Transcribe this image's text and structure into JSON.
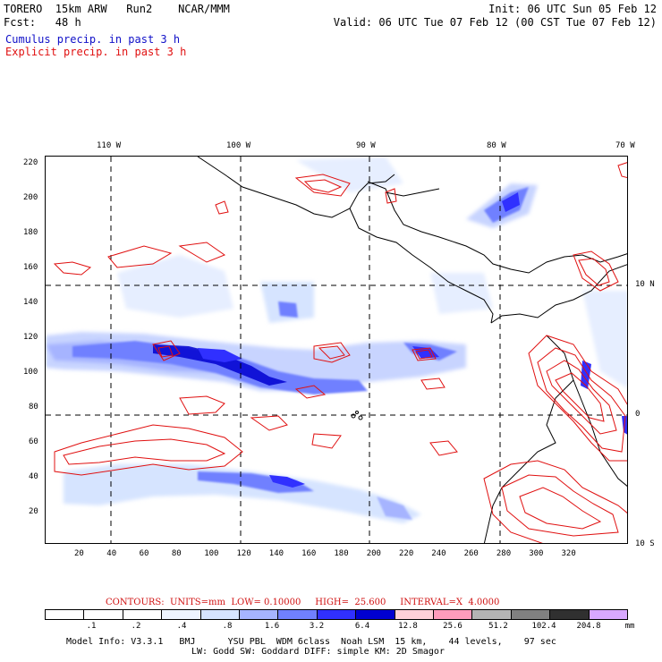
{
  "header": {
    "line1_left": "TORERO  15km ARW   Run2    NCAR/MMM",
    "line1_right": "Init: 06 UTC Sun 05 Feb 12",
    "line2_left": "Fcst:   48 h",
    "line2_right": "Valid: 06 UTC Tue 07 Feb 12 (00 CST Tue 07 Feb 12)",
    "line3": "Cumulus precip. in past 3 h",
    "line4": "Explicit precip. in past 3 h"
  },
  "axes": {
    "top_labels": [
      "110 W",
      "100 W",
      "90 W",
      "80 W",
      "70 W"
    ],
    "left_labels": [
      "220",
      "200",
      "180",
      "160",
      "140",
      "120",
      "100",
      "80",
      "60",
      "40",
      "20"
    ],
    "bottom_labels": [
      "20",
      "40",
      "60",
      "80",
      "100",
      "120",
      "140",
      "160",
      "180",
      "200",
      "220",
      "240",
      "260",
      "280",
      "300",
      "320"
    ],
    "right_labels": [
      "10 N",
      "0",
      "10 S"
    ]
  },
  "contour_info": "CONTOURS:  UNITS=mm  LOW= 0.10000     HIGH=  25.600     INTERVAL=X  4.0000",
  "legend": {
    "colors": [
      "#ffffff",
      "#ffffff",
      "#ffffff",
      "#eef4ff",
      "#d6e4ff",
      "#a6b4ff",
      "#7080ff",
      "#3030ff",
      "#0000d0",
      "#ffd0d8",
      "#ff9cbc",
      "#b4b4b4",
      "#808080",
      "#303030",
      "#d8a8ff"
    ],
    "labels": [
      ".1",
      ".2",
      ".4",
      ".8",
      "1.6",
      "3.2",
      "6.4",
      "12.8",
      "25.6",
      "51.2",
      "102.4",
      "204.8"
    ],
    "unit": "mm"
  },
  "footer": {
    "line1": "Model Info: V3.3.1   BMJ      YSU PBL  WDM 6class  Noah LSM  15 km,    44 levels,    97 sec",
    "line2": "LW: Godd SW: Goddard DIFF: simple KM: 2D Smagor"
  },
  "colors": {
    "cumulus_text": "#1010c8",
    "explicit_text": "#e01010",
    "contour_line": "#e01010",
    "coast": "#000000"
  }
}
